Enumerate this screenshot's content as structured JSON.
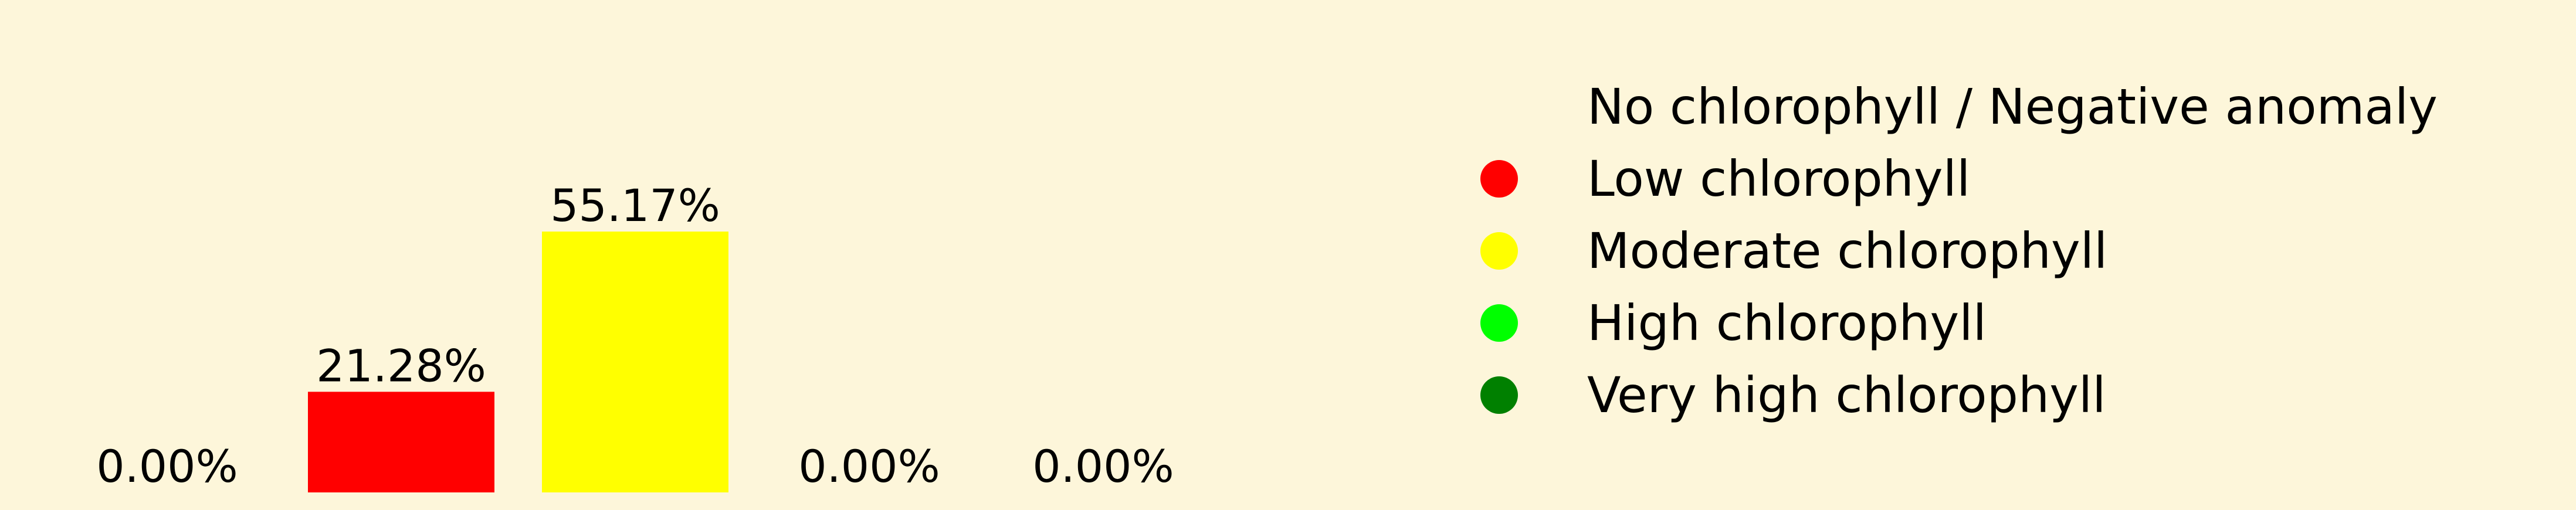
{
  "chart_data": {
    "type": "bar",
    "categories": [
      "No chlorophyll / Negative anomaly",
      "Low chlorophyll",
      "Moderate chlorophyll",
      "High chlorophyll",
      "Very high chlorophyll"
    ],
    "values": [
      0.0,
      21.28,
      55.17,
      0.0,
      0.0
    ],
    "value_labels": [
      "0.00%",
      "21.28%",
      "55.17%",
      "0.00%",
      "0.00%"
    ],
    "colors": [
      "#fdf6da",
      "#ff0000",
      "#ffff00",
      "#00ff00",
      "#008000"
    ],
    "ylim": [
      0,
      60
    ],
    "grid": false,
    "legend_position": "right"
  },
  "legend": {
    "items": [
      {
        "label": "No chlorophyll / Negative anomaly",
        "color": "#fdf6da"
      },
      {
        "label": "Low chlorophyll",
        "color": "#ff0000"
      },
      {
        "label": "Moderate chlorophyll",
        "color": "#ffff00"
      },
      {
        "label": "High chlorophyll",
        "color": "#00ff00"
      },
      {
        "label": "Very high chlorophyll",
        "color": "#008000"
      }
    ]
  }
}
